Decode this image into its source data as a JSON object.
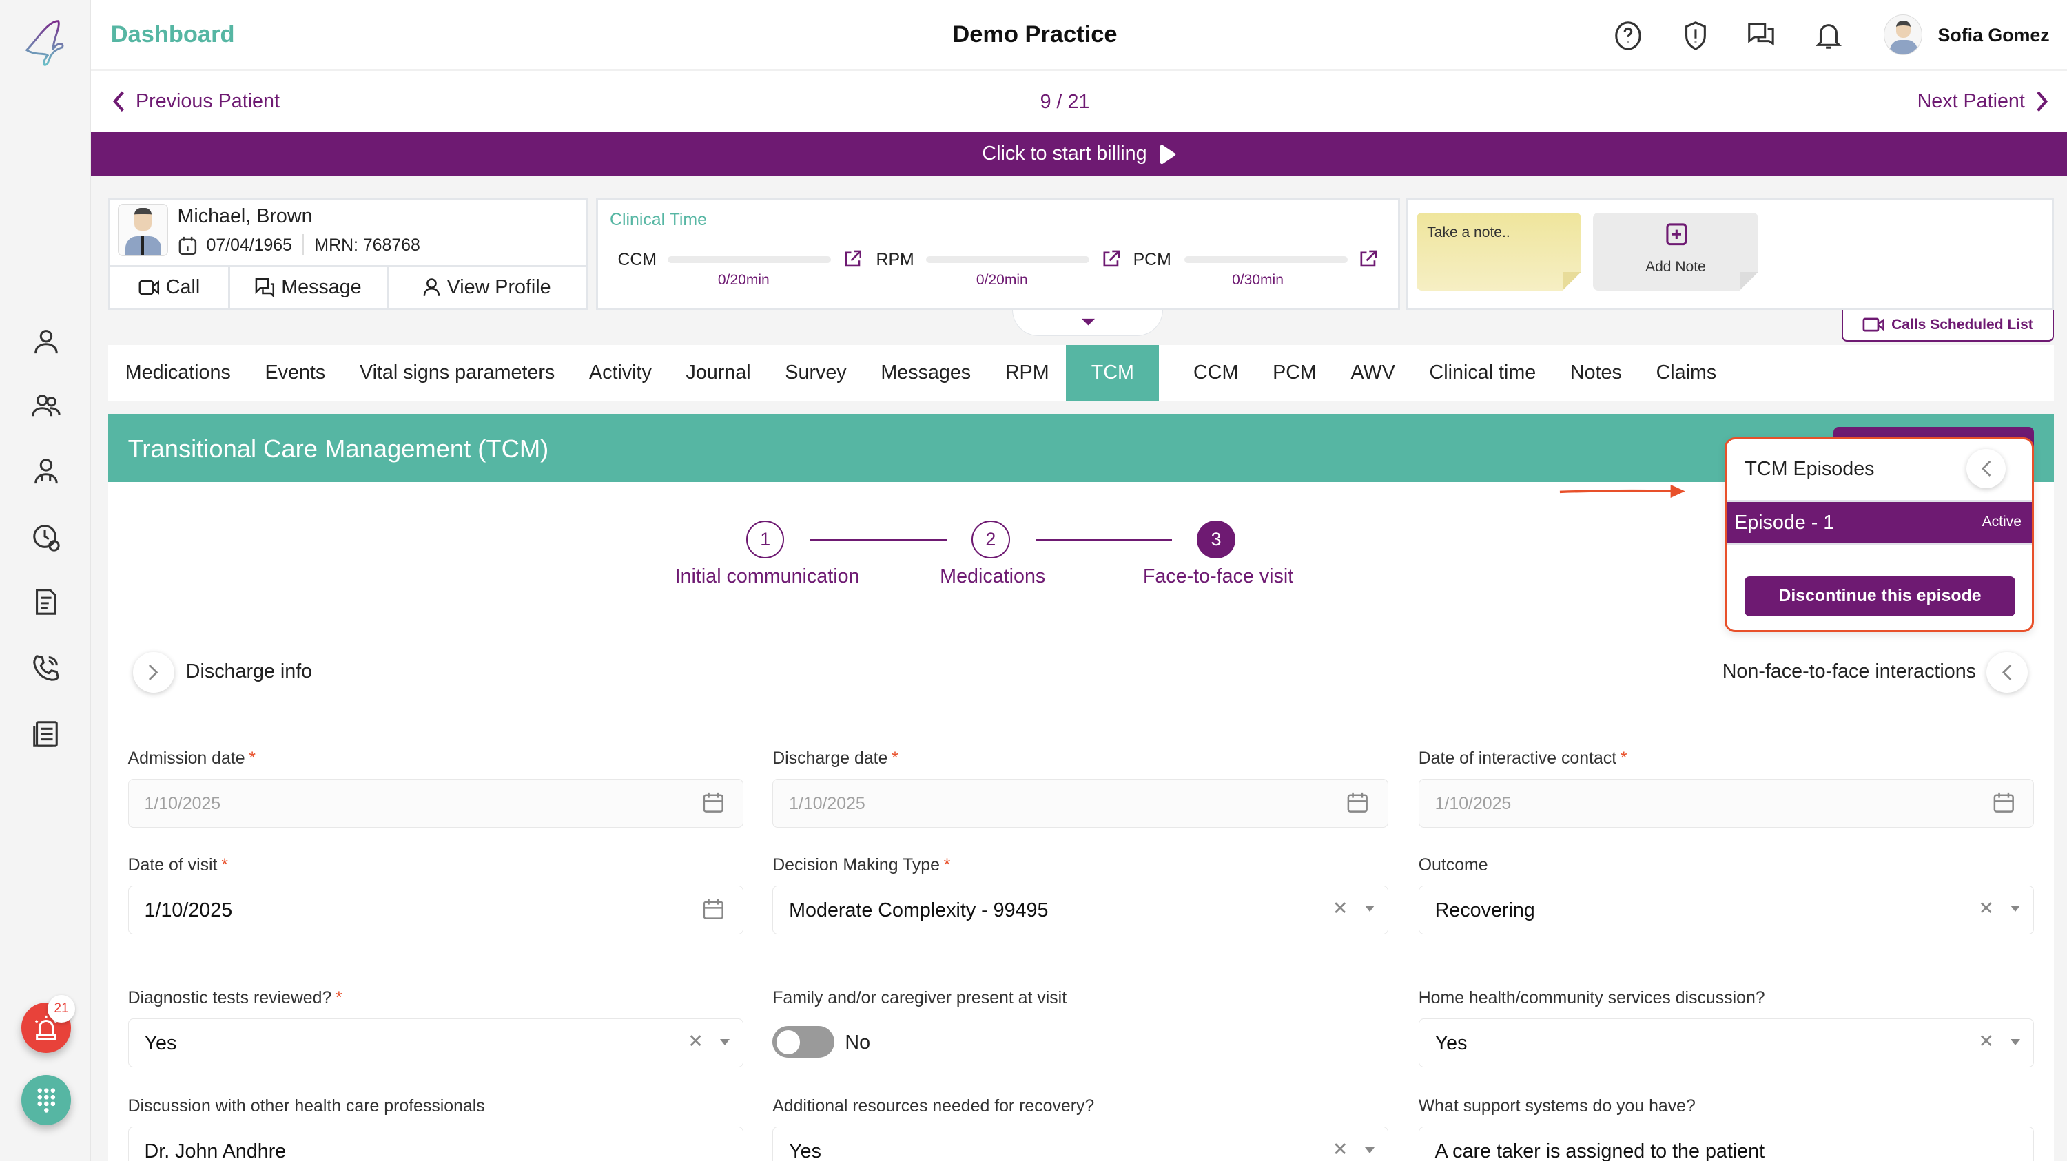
{
  "header": {
    "title": "Dashboard",
    "practice": "Demo Practice",
    "user_name": "Sofia Gomez"
  },
  "nav": {
    "previous": "Previous Patient",
    "counter": "9 / 21",
    "next": "Next Patient"
  },
  "billing": {
    "label": "Click to start billing"
  },
  "patient": {
    "name": "Michael, Brown",
    "dob": "07/04/1965",
    "mrn": "MRN: 768768",
    "call": "Call",
    "message": "Message",
    "view_profile": "View Profile"
  },
  "clinical_time": {
    "title": "Clinical Time",
    "items": [
      {
        "label": "CCM",
        "value": "0/20min",
        "progress": 0
      },
      {
        "label": "RPM",
        "value": "0/20min",
        "progress": 0
      },
      {
        "label": "PCM",
        "value": "0/30min",
        "progress": 0
      }
    ]
  },
  "notes": {
    "placeholder": "Take a note..",
    "add": "Add Note"
  },
  "calls_scheduled": "Calls Scheduled List",
  "tabs": [
    "Medications",
    "Events",
    "Vital signs parameters",
    "Activity",
    "Journal",
    "Survey",
    "Messages",
    "RPM",
    "TCM",
    "CCM",
    "PCM",
    "AWV",
    "Clinical time",
    "Notes",
    "Claims"
  ],
  "active_tab": "TCM",
  "section_title": "Transitional Care Management (TCM)",
  "steps": [
    {
      "num": "1",
      "label": "Initial communication"
    },
    {
      "num": "2",
      "label": "Medications"
    },
    {
      "num": "3",
      "label": "Face-to-face visit"
    }
  ],
  "episodes": {
    "title": "TCM Episodes",
    "episode": "Episode - 1",
    "status": "Active",
    "discontinue": "Discontinue this episode"
  },
  "discharge_info": "Discharge info",
  "non_face": "Non-face-to-face interactions",
  "form": {
    "admission_date": {
      "label": "Admission date",
      "value": "1/10/2025"
    },
    "discharge_date": {
      "label": "Discharge date",
      "value": "1/10/2025"
    },
    "interactive_contact": {
      "label": "Date of interactive contact",
      "value": "1/10/2025"
    },
    "date_of_visit": {
      "label": "Date of visit",
      "value": "1/10/2025"
    },
    "decision_making": {
      "label": "Decision Making Type",
      "value": "Moderate Complexity - 99495"
    },
    "outcome": {
      "label": "Outcome",
      "value": "Recovering"
    },
    "diagnostic_tests": {
      "label": "Diagnostic tests reviewed?",
      "value": "Yes"
    },
    "family_present": {
      "label": "Family and/or caregiver present at visit",
      "value": "No"
    },
    "home_health": {
      "label": "Home health/community services discussion?",
      "value": "Yes"
    },
    "discussion_other": {
      "label": "Discussion with other health care professionals",
      "value": "Dr. John Andhre"
    },
    "additional_resources": {
      "label": "Additional resources needed for recovery?",
      "value": "Yes"
    },
    "support_systems": {
      "label": "What support systems do you have?",
      "value": "A care taker is assigned to the patient"
    }
  },
  "alerts_count": "21",
  "colors": {
    "primary": "#6e1a72",
    "teal": "#56b6a3",
    "alert": "#e8423a",
    "highlight": "#e8502a"
  }
}
